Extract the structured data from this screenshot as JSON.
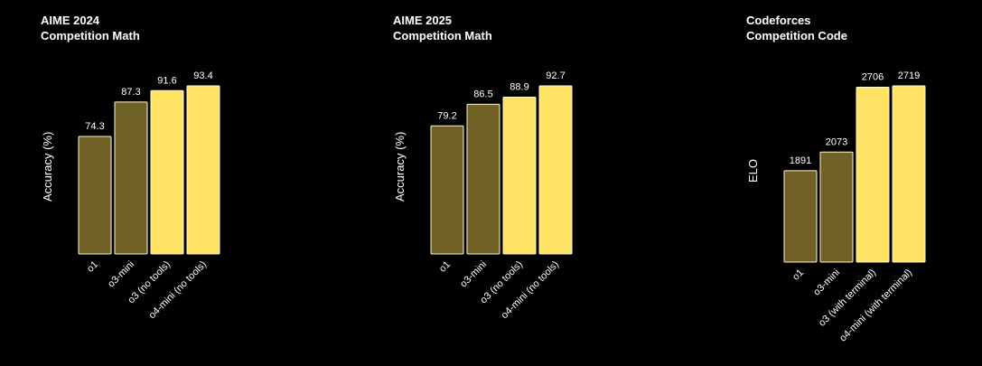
{
  "colors": {
    "dark": "#706127",
    "light": "#fee264",
    "bg": "#000000",
    "text": "#ffffff"
  },
  "chart_data": [
    {
      "type": "bar",
      "title": "AIME 2024",
      "subtitle": "Competition Math",
      "ylabel": "Accuracy (%)",
      "categories": [
        "o1",
        "o3-mini",
        "o3 (no tools)",
        "o4-mini (no tools)"
      ],
      "values": [
        74.3,
        87.3,
        91.6,
        93.4
      ],
      "value_labels": [
        "74.3",
        "87.3",
        "91.6",
        "93.4"
      ],
      "shade": [
        "dark",
        "dark",
        "light",
        "light"
      ]
    },
    {
      "type": "bar",
      "title": "AIME 2025",
      "subtitle": "Competition Math",
      "ylabel": "Accuracy (%)",
      "categories": [
        "o1",
        "o3-mini",
        "o3 (no tools)",
        "o4-mini (no tools)"
      ],
      "values": [
        79.2,
        86.5,
        88.9,
        92.7
      ],
      "value_labels": [
        "79.2",
        "86.5",
        "88.9",
        "92.7"
      ],
      "shade": [
        "dark",
        "dark",
        "light",
        "light"
      ]
    },
    {
      "type": "bar",
      "title": "Codeforces",
      "subtitle": "Competition Code",
      "ylabel": "ELO",
      "categories": [
        "o1",
        "o3-mini",
        "o3 (with terminal)",
        "o4-mini (with terminal)"
      ],
      "values": [
        1891,
        2073,
        2706,
        2719
      ],
      "value_labels": [
        "1891",
        "2073",
        "2706",
        "2719"
      ],
      "shade": [
        "dark",
        "dark",
        "light",
        "light"
      ]
    }
  ]
}
